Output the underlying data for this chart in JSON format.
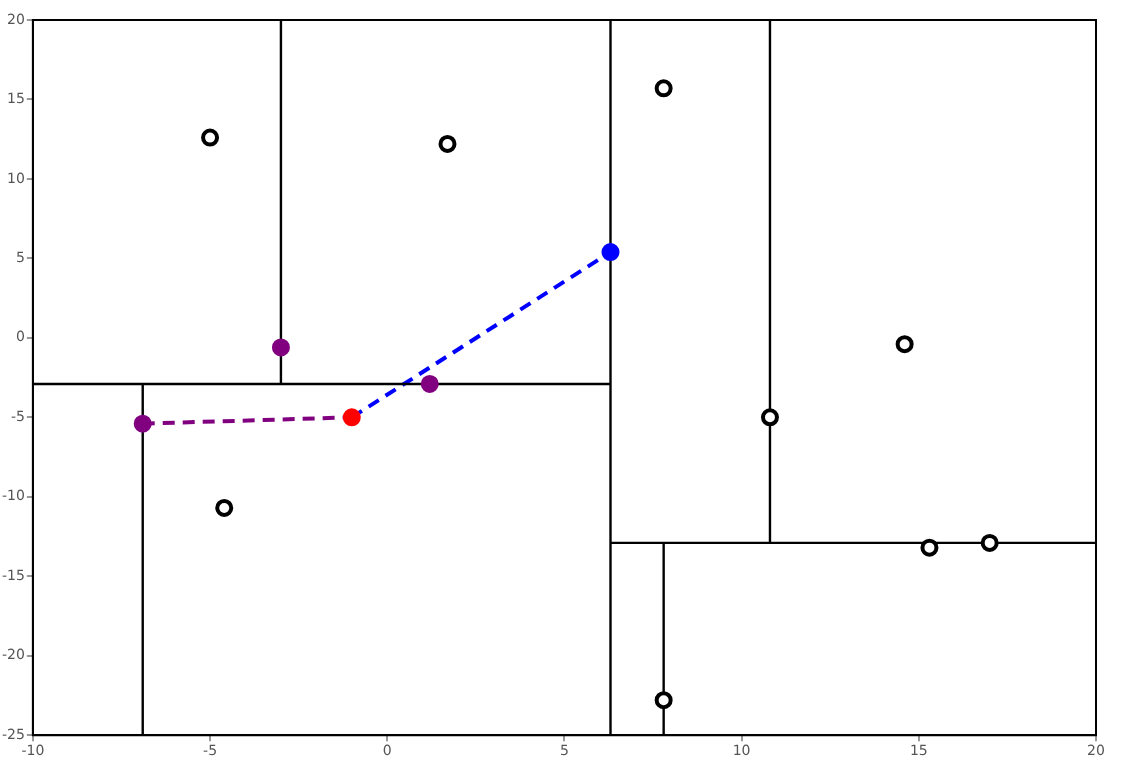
{
  "chart_data": {
    "type": "scatter",
    "xlim": [
      -10,
      20
    ],
    "ylim": [
      -25,
      20
    ],
    "xticks": [
      -10,
      -5,
      0,
      5,
      10,
      15,
      20
    ],
    "yticks": [
      -25,
      -20,
      -15,
      -10,
      -5,
      0,
      5,
      10,
      15,
      20
    ],
    "grid": false,
    "legend": false,
    "marker": "circle",
    "series": [
      {
        "type": "line",
        "color": "#000000",
        "line_style": "solid",
        "marker": "none",
        "x": [
          6.3,
          6.3
        ],
        "values": [
          -25,
          20
        ]
      },
      {
        "type": "line",
        "color": "#000000",
        "line_style": "solid",
        "marker": "none",
        "x": [
          -10,
          6.3
        ],
        "values": [
          -2.9,
          -2.9
        ]
      },
      {
        "type": "line",
        "color": "#000000",
        "line_style": "solid",
        "marker": "none",
        "x": [
          -3,
          -3
        ],
        "values": [
          -2.9,
          20
        ]
      },
      {
        "type": "line",
        "color": "#000000",
        "line_style": "solid",
        "marker": "none",
        "x": [
          -6.9,
          -6.9
        ],
        "values": [
          -25,
          -2.9
        ]
      },
      {
        "type": "line",
        "color": "#000000",
        "line_style": "solid",
        "marker": "none",
        "x": [
          6.3,
          20
        ],
        "values": [
          -12.9,
          -12.9
        ]
      },
      {
        "type": "line",
        "color": "#000000",
        "line_style": "solid",
        "marker": "none",
        "x": [
          10.8,
          10.8
        ],
        "values": [
          -12.9,
          20
        ]
      },
      {
        "type": "line",
        "color": "#000000",
        "line_style": "solid",
        "marker": "none",
        "x": [
          7.8,
          7.8
        ],
        "values": [
          -25,
          -12.9
        ]
      },
      {
        "type": "line",
        "color": "#800080",
        "line_style": "dashed",
        "marker": "none",
        "x": [
          -6.9,
          -1
        ],
        "values": [
          -5.4,
          -5
        ]
      },
      {
        "type": "line",
        "color": "#0000ff",
        "line_style": "dashed",
        "marker": "none",
        "x": [
          -1,
          6.3
        ],
        "values": [
          -5,
          5.4
        ]
      },
      {
        "color": "#000000",
        "x": [
          -5,
          1.7,
          7.8,
          14.6,
          10.8,
          -4.6,
          15.3,
          17,
          7.8
        ],
        "values": [
          12.6,
          12.2,
          15.7,
          -0.4,
          -5,
          -10.7,
          -13.2,
          -12.9,
          -22.8
        ]
      },
      {
        "colors": [
          "#800080",
          "#800080",
          "#800080",
          "#ff0000",
          "#0000ff"
        ],
        "x": [
          -3,
          1.2,
          -6.9,
          -1,
          6.3
        ],
        "values": [
          -0.6,
          -2.9,
          -5.4,
          -5,
          5.4
        ]
      }
    ]
  }
}
